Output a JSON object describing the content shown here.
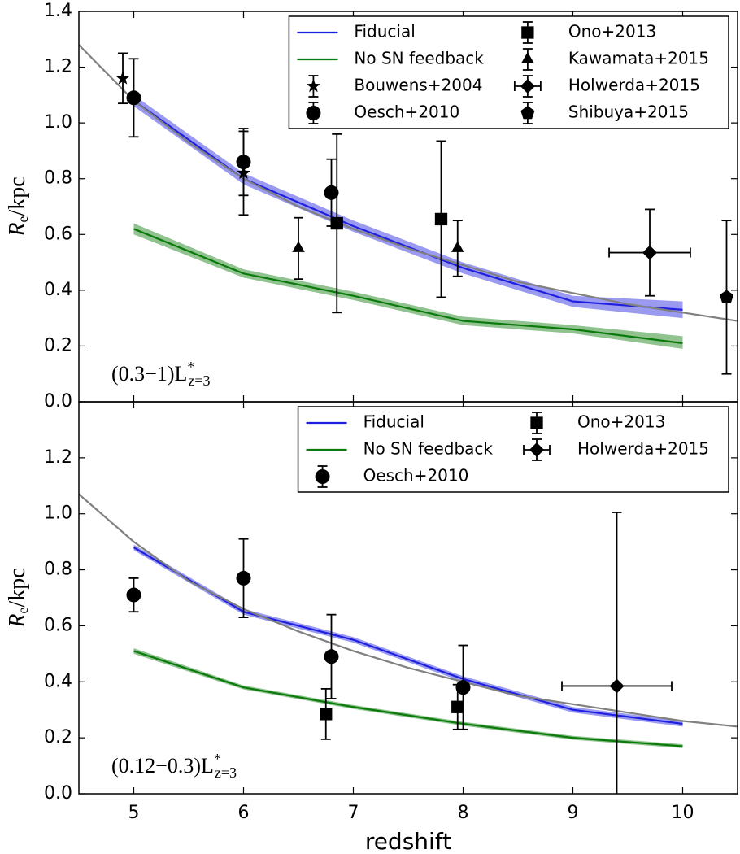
{
  "chart_data": [
    {
      "type": "line",
      "xlim": [
        4.5,
        10.5
      ],
      "xticks": [
        5,
        6,
        7,
        8,
        9,
        10
      ],
      "xticklabels": false,
      "ylim": [
        0,
        1.4
      ],
      "yticks": [
        {
          "value": 0,
          "label": "0.0"
        },
        {
          "value": 0.2,
          "label": "0.2"
        },
        {
          "value": 0.4,
          "label": "0.4"
        },
        {
          "value": 0.6,
          "label": "0.6"
        },
        {
          "value": 0.8,
          "label": "0.8"
        },
        {
          "value": 1.0,
          "label": "1.0"
        },
        {
          "value": 1.2,
          "label": "1.2"
        },
        {
          "value": 1.4,
          "label": "1.4"
        }
      ],
      "y_label": {
        "symbol": "R",
        "subscript": "e",
        "unit": "/kpc"
      },
      "annotation": {
        "text": "(0.3−1)L",
        "superscript": "*",
        "subscript": "z=3"
      },
      "legend": {
        "loc": "upper right",
        "ncol": 2
      },
      "series": [
        {
          "name": "Fiducial",
          "color": "#1f1fe0",
          "x": [
            5,
            6,
            7,
            8,
            9,
            10
          ],
          "values": [
            1.08,
            0.8,
            0.63,
            0.48,
            0.36,
            0.33
          ],
          "lower": [
            1.06,
            0.78,
            0.61,
            0.46,
            0.34,
            0.3
          ],
          "upper": [
            1.1,
            0.82,
            0.65,
            0.5,
            0.38,
            0.36
          ]
        },
        {
          "name": "No SN feedback",
          "color": "#0a7a0a",
          "x": [
            5,
            6,
            7,
            8,
            9,
            10
          ],
          "values": [
            0.62,
            0.46,
            0.38,
            0.29,
            0.26,
            0.21
          ],
          "lower": [
            0.6,
            0.445,
            0.365,
            0.275,
            0.245,
            0.19
          ],
          "upper": [
            0.64,
            0.475,
            0.395,
            0.305,
            0.275,
            0.235
          ]
        },
        {
          "color": "#808080",
          "x": [
            4.5,
            5,
            5.5,
            6,
            6.5,
            7,
            7.5,
            8,
            8.5,
            9,
            9.5,
            10,
            10.5
          ],
          "values": [
            1.28,
            1.08,
            0.93,
            0.8,
            0.7,
            0.62,
            0.55,
            0.49,
            0.43,
            0.39,
            0.35,
            0.32,
            0.29
          ]
        },
        {
          "name": "Bouwens+2004",
          "marker": "star",
          "color": "#000000",
          "x": [
            4.9,
            6.0
          ],
          "values": [
            1.16,
            0.82
          ],
          "yerr": [
            0.09,
            0.15
          ]
        },
        {
          "name": "Oesch+2010",
          "marker": "circle",
          "color": "#000000",
          "x": [
            5.0,
            6.0,
            6.8
          ],
          "values": [
            1.09,
            0.86,
            0.75
          ],
          "yerr": [
            0.14,
            0.12,
            0.12
          ]
        },
        {
          "name": "Ono+2013",
          "marker": "square",
          "color": "#000000",
          "x": [
            6.85,
            7.8
          ],
          "values": [
            0.64,
            0.655
          ],
          "yerr": [
            0.32,
            0.28
          ]
        },
        {
          "name": "Kawamata+2015",
          "marker": "triangle",
          "color": "#000000",
          "x": [
            6.5,
            7.95
          ],
          "values": [
            0.55,
            0.55
          ],
          "yerr": [
            0.11,
            0.1
          ]
        },
        {
          "name": "Holwerda+2015",
          "marker": "diamond",
          "color": "#000000",
          "x": [
            9.7
          ],
          "values": [
            0.535
          ],
          "yerr": [
            0.155
          ],
          "xerr": [
            0.37
          ]
        },
        {
          "name": "Shibuya+2015",
          "marker": "pentagon",
          "color": "#000000",
          "x": [
            10.4
          ],
          "values": [
            0.375
          ],
          "yerr": [
            0.275
          ]
        }
      ]
    },
    {
      "type": "line",
      "xlim": [
        4.5,
        10.5
      ],
      "xticks": [
        5,
        6,
        7,
        8,
        9,
        10
      ],
      "xticklabels": true,
      "x_label": "redshift",
      "ylim": [
        0,
        1.4
      ],
      "yticks": [
        {
          "value": 0,
          "label": "0.0"
        },
        {
          "value": 0.2,
          "label": "0.2"
        },
        {
          "value": 0.4,
          "label": "0.4"
        },
        {
          "value": 0.6,
          "label": "0.6"
        },
        {
          "value": 0.8,
          "label": "0.8"
        },
        {
          "value": 1.0,
          "label": "1.0"
        },
        {
          "value": 1.2,
          "label": "1.2"
        }
      ],
      "y_label": {
        "symbol": "R",
        "subscript": "e",
        "unit": "/kpc"
      },
      "annotation": {
        "text": "(0.12−0.3)L",
        "superscript": "*",
        "subscript": "z=3"
      },
      "legend": {
        "loc": "upper right",
        "ncol": 2
      },
      "series": [
        {
          "name": "Fiducial",
          "color": "#1f1fe0",
          "x": [
            5,
            6,
            7,
            8,
            9,
            10
          ],
          "values": [
            0.88,
            0.65,
            0.55,
            0.41,
            0.3,
            0.25
          ],
          "lower": [
            0.87,
            0.64,
            0.54,
            0.4,
            0.29,
            0.24
          ],
          "upper": [
            0.89,
            0.66,
            0.56,
            0.42,
            0.31,
            0.26
          ]
        },
        {
          "name": "No SN feedback",
          "color": "#0a7a0a",
          "x": [
            5,
            6,
            7,
            8,
            9,
            10
          ],
          "values": [
            0.51,
            0.38,
            0.31,
            0.25,
            0.2,
            0.17
          ],
          "lower": [
            0.5,
            0.373,
            0.303,
            0.243,
            0.193,
            0.163
          ],
          "upper": [
            0.52,
            0.387,
            0.317,
            0.257,
            0.207,
            0.177
          ]
        },
        {
          "color": "#808080",
          "x": [
            4.5,
            5,
            5.5,
            6,
            6.5,
            7,
            7.5,
            8,
            8.5,
            9,
            9.5,
            10,
            10.5
          ],
          "values": [
            1.07,
            0.9,
            0.76,
            0.66,
            0.58,
            0.51,
            0.45,
            0.4,
            0.35,
            0.32,
            0.29,
            0.26,
            0.24
          ]
        },
        {
          "name": "Oesch+2010",
          "marker": "circle",
          "color": "#000000",
          "x": [
            5.0,
            6.0,
            6.8,
            8.0
          ],
          "values": [
            0.71,
            0.77,
            0.49,
            0.38
          ],
          "yerr": [
            0.06,
            0.14,
            0.15,
            0.15
          ]
        },
        {
          "name": "Ono+2013",
          "marker": "square",
          "color": "#000000",
          "x": [
            6.75,
            7.95
          ],
          "values": [
            0.285,
            0.31
          ],
          "yerr": [
            0.09,
            0.08
          ]
        },
        {
          "name": "Holwerda+2015",
          "marker": "diamond",
          "color": "#000000",
          "x": [
            9.4
          ],
          "values": [
            0.385
          ],
          "yerr": [
            0.62
          ],
          "xerr": [
            0.5
          ]
        }
      ]
    }
  ]
}
